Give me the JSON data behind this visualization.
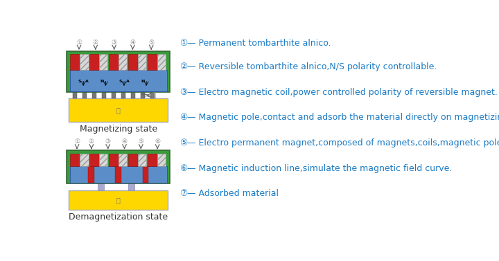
{
  "bg_color": "#ffffff",
  "blue_text_color": "#1B7BC4",
  "dark_text_color": "#333333",
  "legend_items": [
    {
      "num": "1",
      "text": "Permanent tombarthite alnico."
    },
    {
      "num": "2",
      "text": "Reversible tombarthite alnico,N/S polarity controllable."
    },
    {
      "num": "3",
      "text": "Electro magnetic coil,power controlled polarity of reversible magnet."
    },
    {
      "num": "4",
      "text": "Magnetic pole,contact and adsorb the material directly on magnetizing state."
    },
    {
      "num": "5",
      "text": "Electro permanent magnet,composed of magnets,coils,magnetic poles."
    },
    {
      "num": "6",
      "text": "Magnetic induction line,simulate the magnetic field curve."
    },
    {
      "num": "7",
      "text": "Adsorbed material"
    }
  ],
  "label1": "Magnetizing state",
  "label2": "Demagnetization state",
  "green_color": "#3A9A3A",
  "light_blue": "#5B8EC9",
  "red_color": "#C82020",
  "yellow_color": "#FFD700",
  "gray_coil": "#CCCCCC",
  "arrow_color": "#666666",
  "num_color": "#888888"
}
